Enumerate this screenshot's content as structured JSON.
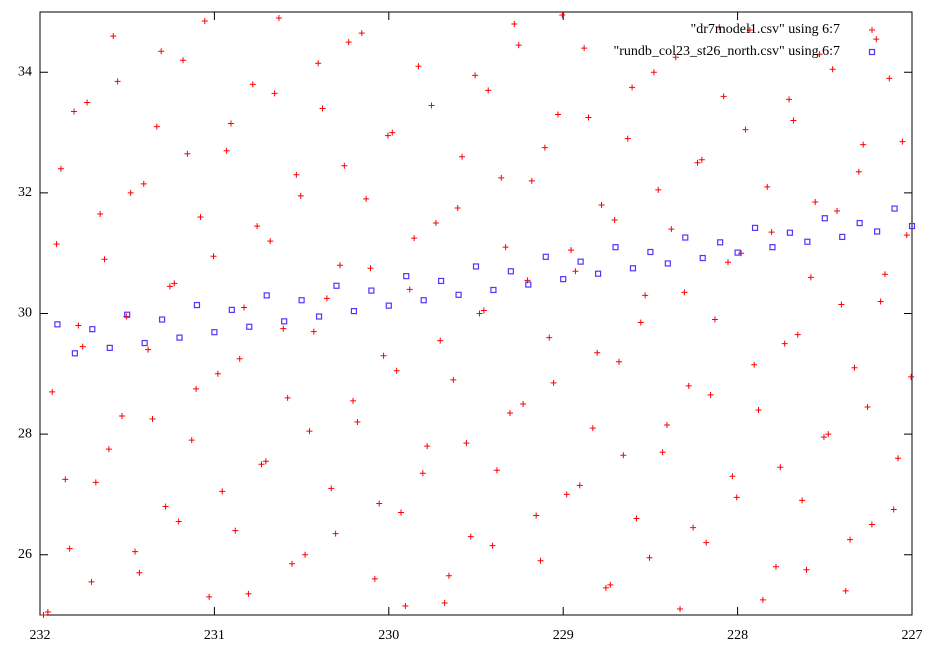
{
  "chart_data": {
    "type": "scatter",
    "xlim": [
      232,
      227
    ],
    "ylim": [
      25,
      35
    ],
    "xticks": [
      232,
      231,
      230,
      229,
      228,
      227
    ],
    "yticks": [
      26,
      28,
      30,
      32,
      34
    ],
    "legend": "top-right",
    "series": [
      {
        "name": "\"dr7model1.csv\" using 6:7",
        "color": "#ff0000",
        "marker": "plus",
        "x": [
          231.98,
          231.93,
          231.88,
          231.83,
          231.78,
          231.73,
          231.68,
          231.63,
          231.58,
          231.53,
          231.48,
          231.43,
          231.38,
          231.33,
          231.28,
          231.23,
          231.18,
          231.13,
          231.08,
          231.03,
          230.98,
          230.93,
          230.88,
          230.83,
          230.78,
          230.73,
          230.68,
          230.63,
          230.58,
          230.53,
          230.48,
          230.43,
          230.38,
          230.33,
          230.28,
          230.23,
          230.18,
          230.13,
          230.08,
          230.03,
          229.98,
          229.93,
          229.88,
          229.83,
          229.78,
          229.73,
          229.68,
          229.63,
          229.58,
          229.53,
          229.48,
          229.43,
          229.38,
          229.33,
          229.28,
          229.23,
          229.18,
          229.13,
          229.08,
          229.03,
          228.98,
          228.93,
          228.88,
          228.83,
          228.78,
          228.73,
          228.68,
          228.63,
          228.58,
          228.53,
          228.48,
          228.43,
          228.38,
          228.33,
          228.28,
          228.23,
          228.18,
          228.13,
          228.08,
          228.03,
          227.98,
          227.93,
          227.88,
          227.83,
          227.78,
          227.73,
          227.68,
          227.63,
          227.58,
          227.53,
          227.48,
          227.43,
          227.38,
          227.33,
          227.28,
          227.23,
          227.18,
          227.13,
          227.08,
          227.03,
          231.955,
          231.905,
          231.855,
          231.805,
          231.755,
          231.705,
          231.655,
          231.605,
          231.555,
          231.505,
          231.455,
          231.405,
          231.355,
          231.305,
          231.255,
          231.205,
          231.155,
          231.105,
          231.055,
          231.005,
          230.955,
          230.905,
          230.855,
          230.805,
          230.755,
          230.705,
          230.655,
          230.605,
          230.555,
          230.505,
          230.455,
          230.405,
          230.355,
          230.305,
          230.255,
          230.205,
          230.155,
          230.105,
          230.055,
          230.005,
          229.955,
          229.905,
          229.855,
          229.805,
          229.755,
          229.705,
          229.655,
          229.605,
          229.555,
          229.505,
          229.455,
          229.405,
          229.355,
          229.305,
          229.255,
          229.205,
          229.155,
          229.105,
          229.055,
          229.005,
          228.955,
          228.905,
          228.855,
          228.805,
          228.755,
          228.705,
          228.655,
          228.605,
          228.555,
          228.505,
          228.455,
          228.405,
          228.355,
          228.305,
          228.255,
          228.205,
          228.155,
          228.105,
          228.055,
          228.005,
          227.955,
          227.905,
          227.855,
          227.805,
          227.755,
          227.705,
          227.655,
          227.605,
          227.555,
          227.505,
          227.455,
          227.405,
          227.355,
          227.305,
          227.255,
          227.205,
          227.155,
          227.105,
          227.055,
          227.005
        ],
        "y": [
          25.0,
          28.7,
          32.4,
          26.1,
          29.8,
          33.5,
          27.2,
          30.9,
          34.6,
          28.3,
          32.0,
          25.7,
          29.4,
          33.1,
          26.8,
          30.5,
          34.2,
          27.9,
          31.6,
          25.3,
          29.0,
          32.7,
          26.4,
          30.1,
          33.8,
          27.5,
          31.2,
          34.9,
          28.6,
          32.3,
          26.0,
          29.7,
          33.4,
          27.1,
          30.8,
          34.5,
          28.2,
          31.9,
          25.6,
          29.3,
          33.0,
          26.7,
          30.4,
          34.1,
          27.8,
          31.5,
          25.2,
          28.9,
          32.6,
          26.3,
          30.0,
          33.7,
          27.4,
          31.1,
          34.8,
          28.5,
          32.2,
          25.9,
          29.6,
          33.3,
          27.0,
          30.7,
          34.4,
          28.1,
          31.8,
          25.5,
          29.2,
          32.9,
          26.6,
          30.3,
          34.0,
          27.7,
          31.4,
          25.1,
          28.8,
          32.5,
          26.2,
          29.9,
          33.6,
          27.3,
          31.0,
          34.7,
          28.4,
          32.1,
          25.8,
          29.5,
          33.2,
          26.9,
          30.6,
          34.3,
          28.0,
          31.7,
          25.4,
          29.1,
          32.8,
          26.5,
          30.2,
          33.9,
          27.6,
          31.3,
          25.05,
          31.15,
          27.25,
          33.35,
          29.45,
          25.55,
          31.65,
          27.75,
          33.85,
          29.95,
          26.05,
          32.15,
          28.25,
          34.35,
          30.45,
          26.55,
          32.65,
          28.75,
          34.85,
          30.95,
          27.05,
          33.15,
          29.25,
          25.35,
          31.45,
          27.55,
          33.65,
          29.75,
          25.85,
          31.95,
          28.05,
          34.15,
          30.25,
          26.35,
          32.45,
          28.55,
          34.65,
          30.75,
          26.85,
          32.95,
          29.05,
          25.15,
          31.25,
          27.35,
          33.45,
          29.55,
          25.65,
          31.75,
          27.85,
          33.95,
          30.05,
          26.15,
          32.25,
          28.35,
          34.45,
          30.55,
          26.65,
          32.75,
          28.85,
          34.95,
          31.05,
          27.15,
          33.25,
          29.35,
          25.45,
          31.55,
          27.65,
          33.75,
          29.85,
          25.95,
          32.05,
          28.15,
          34.25,
          30.35,
          26.45,
          32.55,
          28.65,
          34.75,
          30.85,
          26.95,
          33.05,
          29.15,
          25.25,
          31.35,
          27.45,
          33.55,
          29.65,
          25.75,
          31.85,
          27.95,
          34.05,
          30.15,
          26.25,
          32.35,
          28.45,
          34.55,
          30.65,
          26.75,
          32.85,
          28.95
        ]
      },
      {
        "name": "\"rundb_col23_st26_north.csv\" using 6:7",
        "color": "#5533ff",
        "marker": "square",
        "x": [
          231.9,
          231.7,
          231.5,
          231.3,
          231.1,
          230.9,
          230.7,
          230.5,
          230.3,
          230.1,
          229.9,
          229.7,
          229.5,
          229.3,
          229.1,
          228.9,
          228.7,
          228.5,
          228.3,
          228.1,
          227.9,
          227.7,
          227.5,
          227.3,
          227.1,
          231.8,
          231.6,
          231.4,
          231.2,
          231.0,
          230.8,
          230.6,
          230.4,
          230.2,
          230.0,
          229.8,
          229.6,
          229.4,
          229.2,
          229.0,
          228.8,
          228.6,
          228.4,
          228.2,
          228.0,
          227.8,
          227.6,
          227.4,
          227.2,
          227.0
        ],
        "y": [
          29.82,
          29.74,
          29.98,
          29.9,
          30.14,
          30.06,
          30.3,
          30.22,
          30.46,
          30.38,
          30.62,
          30.54,
          30.78,
          30.7,
          30.94,
          30.86,
          31.1,
          31.02,
          31.26,
          31.18,
          31.42,
          31.34,
          31.58,
          31.5,
          31.74,
          29.34,
          29.43,
          29.51,
          29.6,
          29.69,
          29.78,
          29.87,
          29.95,
          30.04,
          30.13,
          30.22,
          30.31,
          30.39,
          30.48,
          30.57,
          30.66,
          30.75,
          30.83,
          30.92,
          31.01,
          31.1,
          31.19,
          31.27,
          31.36,
          31.45
        ]
      }
    ]
  }
}
